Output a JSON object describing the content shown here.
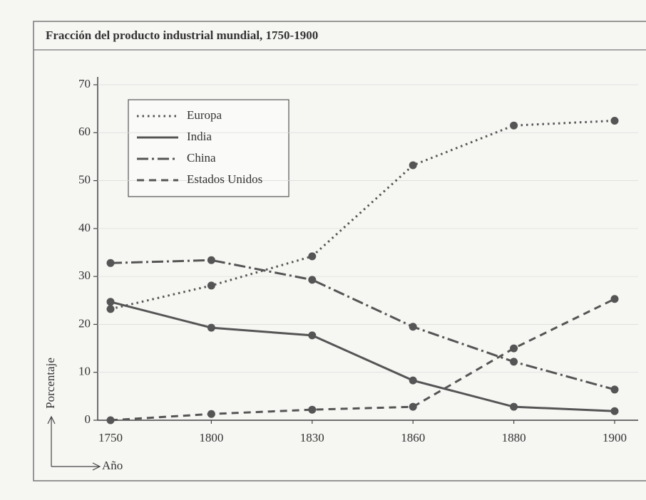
{
  "chart_data": {
    "type": "line",
    "title": "Fracción del producto industrial mundial, 1750-1900",
    "y_label": "Porcentaje",
    "x_label": "Año",
    "categories": [
      "1750",
      "1800",
      "1830",
      "1860",
      "1880",
      "1900"
    ],
    "series": [
      {
        "name": "Europa",
        "color": "#555555",
        "style": "dotted",
        "values": [
          23.2,
          28.1,
          34.2,
          53.2,
          61.5,
          62.5
        ]
      },
      {
        "name": "India",
        "color": "#555555",
        "style": "solid",
        "values": [
          24.7,
          19.3,
          17.7,
          8.3,
          2.8,
          1.9
        ]
      },
      {
        "name": "China",
        "color": "#555555",
        "style": "dashdot",
        "values": [
          32.8,
          33.4,
          29.3,
          19.5,
          12.2,
          6.4
        ]
      },
      {
        "name": "Estados Unidos",
        "color": "#555555",
        "style": "dashed",
        "values": [
          0,
          1.3,
          2.2,
          2.8,
          15,
          25.3
        ]
      }
    ],
    "ylim": [
      0,
      70
    ],
    "yticks": [
      0,
      10,
      20,
      30,
      40,
      50,
      60,
      70
    ],
    "grid": true,
    "legend": "upper left"
  }
}
